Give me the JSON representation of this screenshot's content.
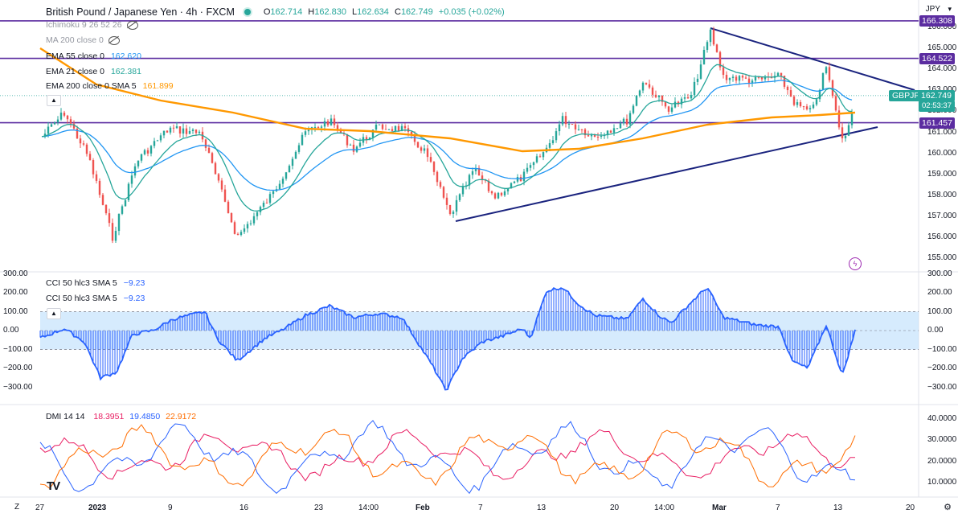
{
  "header": {
    "title": "British Pound / Japanese Yen · 4h · FXCM",
    "open_label": "O",
    "open": "162.714",
    "high_label": "H",
    "high": "162.830",
    "low_label": "L",
    "low": "162.634",
    "close_label": "C",
    "close": "162.749",
    "change": "+0.035 (+0.02%)"
  },
  "indicators": [
    {
      "label": "Ichimoku 9 26 52 26",
      "value": "",
      "hidden": true
    },
    {
      "label": "MA 200 close 0",
      "value": "",
      "hidden": true
    },
    {
      "label": "EMA 55 close 0",
      "value": "162.620",
      "color": "#2196f3"
    },
    {
      "label": "EMA 21 close 0",
      "value": "162.381",
      "color": "#26a69a"
    },
    {
      "label": "EMA 200 close 0 SMA 5",
      "value": "161.899",
      "color": "#ff9800"
    }
  ],
  "price_axis": {
    "unit": "JPY",
    "ticks": [
      "166.000",
      "165.000",
      "164.000",
      "163.000",
      "162.000",
      "161.000",
      "160.000",
      "159.000",
      "158.000",
      "157.000",
      "156.000",
      "155.000"
    ],
    "levels": [
      {
        "label": "166.308"
      },
      {
        "label": "164.522"
      },
      {
        "label": "161.457"
      }
    ],
    "symbol": "GBPJPY",
    "last_price": "162.749",
    "countdown": "02:53:37"
  },
  "cci": {
    "legend_1": "CCI 50 hlc3 SMA 5",
    "value_1": "−9.23",
    "legend_2": "CCI 50 hlc3 SMA 5",
    "value_2": "−9.23",
    "ticks": [
      "300.00",
      "200.00",
      "100.00",
      "0.00",
      "−100.00",
      "−200.00",
      "−300.00"
    ]
  },
  "dmi": {
    "legend": "DMI 14 14",
    "v1": "18.3951",
    "v1_color": "#e91e63",
    "v2": "19.4850",
    "v2_color": "#2962ff",
    "v3": "22.9172",
    "v3_color": "#ff6d00",
    "ticks": [
      "40.0000",
      "30.0000",
      "20.0000",
      "10.0000"
    ]
  },
  "time_axis": {
    "ticks": [
      "27",
      "2023",
      "9",
      "16",
      "23",
      "14:00",
      "Feb",
      "7",
      "13",
      "20",
      "14:00",
      "Mar",
      "7",
      "13",
      "20"
    ]
  },
  "footer": {
    "timezone_glyph": "Z",
    "logo": "TV",
    "settings_glyph": "⚙"
  },
  "colors": {
    "up": "#26a69a",
    "down": "#ef5350",
    "level": "#5b2ca0",
    "trendline": "#1a237e",
    "ema55": "#2196f3",
    "ema21": "#26a69a",
    "ema200": "#ff9800",
    "cci": "#2962ff"
  }
}
